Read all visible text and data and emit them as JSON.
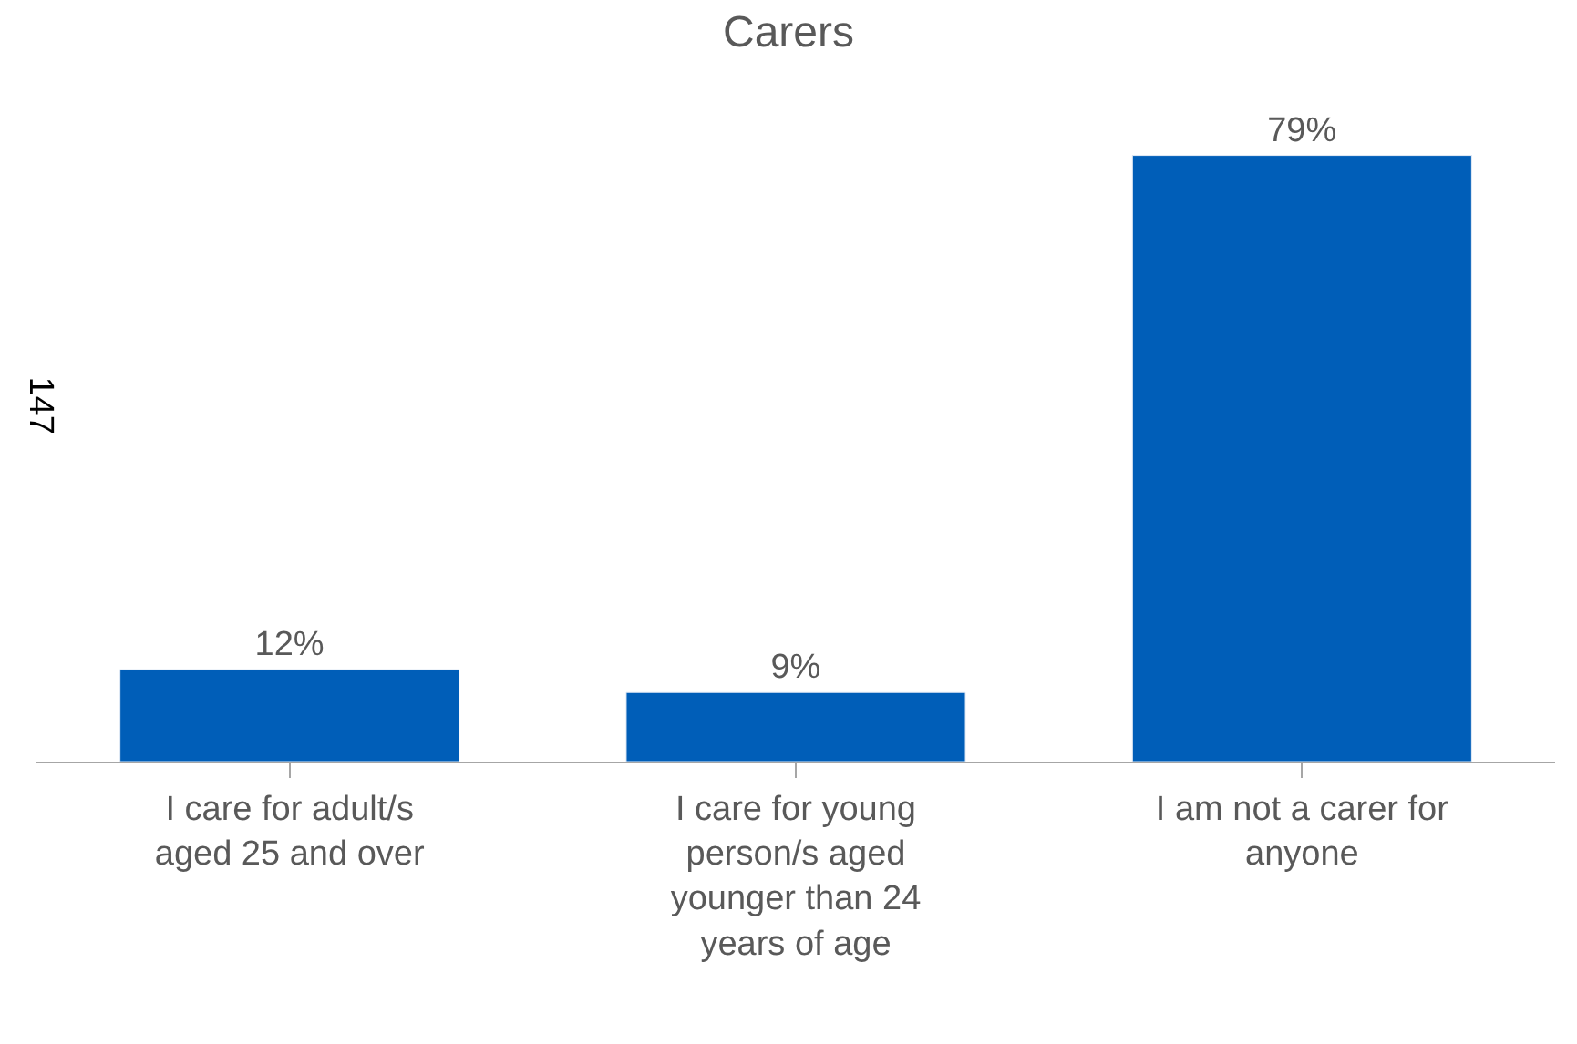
{
  "chart_data": {
    "type": "bar",
    "title": "Carers",
    "ylabel": "147",
    "categories": [
      "I care for adult/s aged 25 and over",
      "I care for young person/s aged younger than 24 years of age",
      "I am not a carer for anyone"
    ],
    "values": [
      12,
      9,
      79
    ],
    "color": "#005eb8",
    "value_labels": [
      "12%",
      "9%",
      "79%"
    ]
  }
}
